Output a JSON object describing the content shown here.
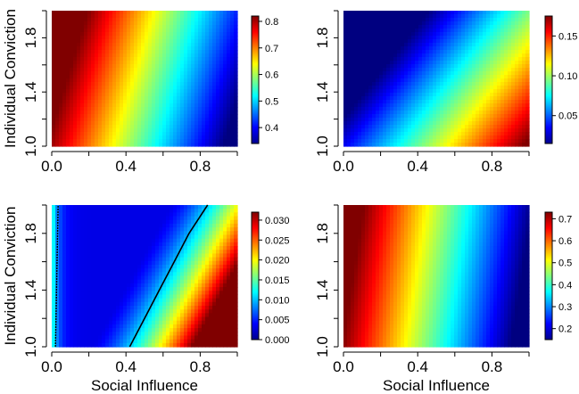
{
  "chart_data": [
    {
      "type": "heatmap",
      "title": "",
      "xlabel": "",
      "ylabel": "Individual Conviction",
      "xlim": [
        0,
        1
      ],
      "ylim": [
        1,
        2
      ],
      "xticks": [
        "0.0",
        "0.4",
        "0.8"
      ],
      "yticks": [
        "1.0",
        "1.4",
        "1.8"
      ],
      "colorbar": {
        "min": 0.34,
        "max": 0.82,
        "ticks": [
          "0.4",
          "0.5",
          "0.6",
          "0.7",
          "0.8"
        ]
      },
      "field": {
        "value_at_x0_y1": 0.82,
        "value_at_x1_y1": 0.36,
        "value_at_x0_y2": 0.76,
        "value_at_x1_y2": 0.34,
        "gradient": "decreasing with social influence, transition shifts right as conviction grows"
      }
    },
    {
      "type": "heatmap",
      "title": "",
      "xlabel": "",
      "ylabel": "",
      "xlim": [
        0,
        1
      ],
      "ylim": [
        1,
        2
      ],
      "xticks": [
        "0.0",
        "0.4",
        "0.8"
      ],
      "yticks": [
        "1.0",
        "1.4",
        "1.8"
      ],
      "colorbar": {
        "min": 0.015,
        "max": 0.175,
        "ticks": [
          "0.05",
          "0.10",
          "0.15"
        ]
      },
      "field": {
        "value_at_x0_y1": 0.03,
        "value_at_x1_y1": 0.175,
        "value_at_x0_y2": 0.015,
        "value_at_x1_y2": 0.11,
        "gradient": "increasing with social influence, decreasing with conviction"
      }
    },
    {
      "type": "heatmap",
      "title": "",
      "xlabel": "Social Influence",
      "ylabel": "Individual Conviction",
      "xlim": [
        0,
        1
      ],
      "ylim": [
        1,
        2
      ],
      "xticks": [
        "0.0",
        "0.4",
        "0.8"
      ],
      "yticks": [
        "1.0",
        "1.4",
        "1.8"
      ],
      "colorbar": {
        "min": 0.0,
        "max": 0.032,
        "ticks": [
          "0.000",
          "0.005",
          "0.010",
          "0.015",
          "0.020",
          "0.025",
          "0.030"
        ]
      },
      "field": {
        "value_at_x0_y1": 0.012,
        "minimum_near_x": 0.3,
        "value_at_x1_y1": 0.032,
        "value_at_x1_y2": 0.012,
        "gradient": "valley near low social influence, rising to the right"
      },
      "contour": {
        "points": [
          [
            0.42,
            1.0
          ],
          [
            0.5,
            1.2
          ],
          [
            0.58,
            1.4
          ],
          [
            0.66,
            1.6
          ],
          [
            0.74,
            1.8
          ],
          [
            0.84,
            2.0
          ]
        ],
        "left_edge_x": 0.02
      }
    },
    {
      "type": "heatmap",
      "title": "",
      "xlabel": "Social Influence",
      "ylabel": "",
      "xlim": [
        0,
        1
      ],
      "ylim": [
        1,
        2
      ],
      "xticks": [
        "0.0",
        "0.4",
        "0.8"
      ],
      "yticks": [
        "1.0",
        "1.4",
        "1.8"
      ],
      "colorbar": {
        "min": 0.15,
        "max": 0.73,
        "ticks": [
          "0.2",
          "0.3",
          "0.4",
          "0.5",
          "0.6",
          "0.7"
        ]
      },
      "field": {
        "value_at_x0_y1": 0.73,
        "value_at_x1_y1": 0.15,
        "value_at_x0_y2": 0.72,
        "value_at_x1_y2": 0.2,
        "gradient": "decreasing with social influence"
      }
    }
  ]
}
